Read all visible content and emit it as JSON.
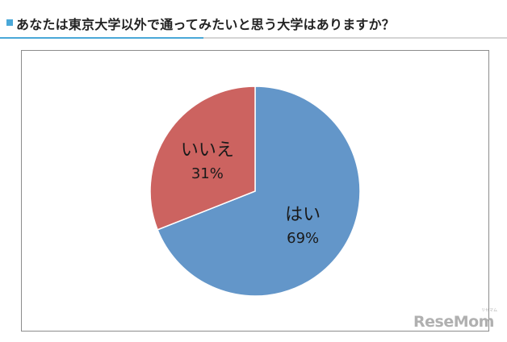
{
  "header": {
    "title": "あなたは東京大学以外で通ってみたいと思う大学はありますか？",
    "icon": "square-bullet-icon",
    "accent_color": "#4aa8d8"
  },
  "chart_data": {
    "type": "pie",
    "title": "",
    "slices": [
      {
        "label": "はい",
        "value": 69,
        "value_label": "69%",
        "color": "#6396c9"
      },
      {
        "label": "いいえ",
        "value": 31,
        "value_label": "31%",
        "color": "#cc6360"
      }
    ],
    "start_angle": "12 o'clock",
    "direction": "clockwise"
  },
  "watermark": {
    "logo_text": "ReseMom",
    "logo_kana": "リセマム"
  }
}
